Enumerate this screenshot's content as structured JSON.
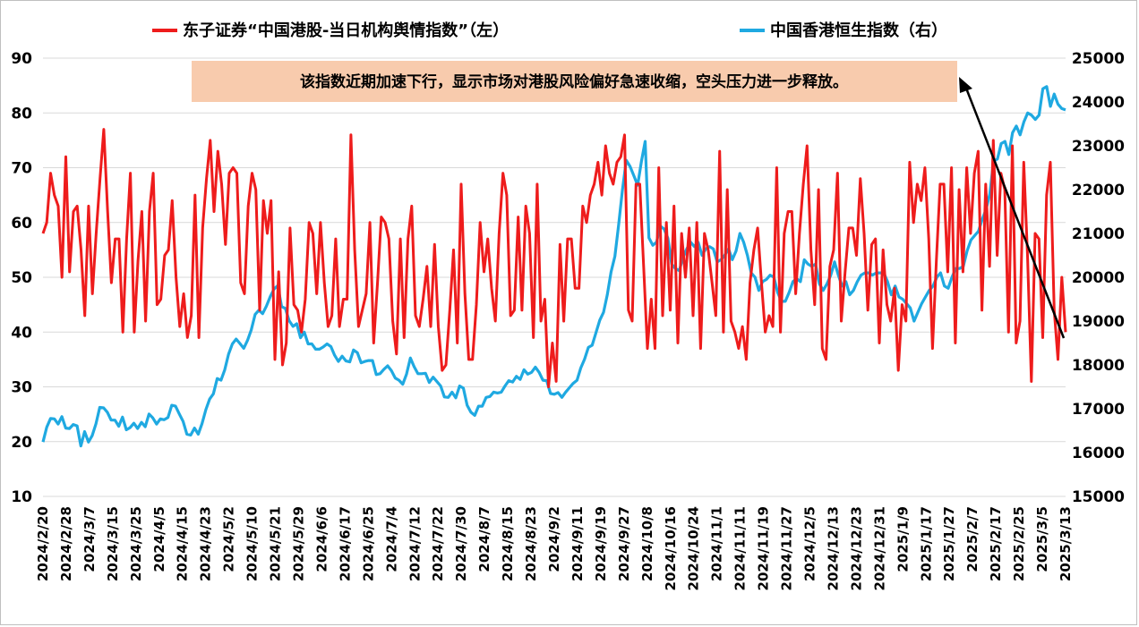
{
  "chart_data": {
    "type": "line",
    "title": "",
    "legend_placement": "top",
    "grid": true,
    "colors": {
      "left_series": "#ee1c1c",
      "right_series": "#1fa9e1",
      "annotation_bg": "#f8cbad",
      "grid": "#d9d9d9",
      "arrow": "#000000"
    },
    "y_left": {
      "ylim": [
        10,
        90
      ],
      "ticks": [
        "10",
        "20",
        "30",
        "40",
        "50",
        "60",
        "70",
        "80",
        "90"
      ]
    },
    "y_right": {
      "ylim": [
        15000,
        25000
      ],
      "ticks": [
        "15000",
        "16000",
        "17000",
        "18000",
        "19000",
        "20000",
        "21000",
        "22000",
        "23000",
        "24000",
        "25000"
      ]
    },
    "x_tick_labels": [
      "2024/2/20",
      "2024/2/28",
      "2024/3/7",
      "2024/3/15",
      "2024/3/25",
      "2024/4/5",
      "2024/4/15",
      "2024/4/23",
      "2024/5/2",
      "2024/5/10",
      "2024/5/21",
      "2024/5/29",
      "2024/6/6",
      "2024/6/17",
      "2024/6/25",
      "2024/7/4",
      "2024/7/12",
      "2024/7/22",
      "2024/7/30",
      "2024/8/7",
      "2024/8/15",
      "2024/8/23",
      "2024/9/2",
      "2024/9/11",
      "2024/9/19",
      "2024/9/27",
      "2024/10/8",
      "2024/10/16",
      "2024/10/24",
      "2024/11/1",
      "2024/11/11",
      "2024/11/19",
      "2024/11/27",
      "2024/12/5",
      "2024/12/13",
      "2024/12/23",
      "2024/12/31",
      "2025/1/9",
      "2025/1/17",
      "2025/1/27",
      "2025/2/7",
      "2025/2/17",
      "2025/2/25",
      "2025/3/5",
      "2025/3/13"
    ],
    "series": [
      {
        "name": "东子证券“中国港股-当日机构舆情指数”（左）",
        "axis": "left",
        "values": [
          58,
          60,
          69,
          65,
          63,
          50,
          72,
          51,
          62,
          63,
          55,
          43,
          63,
          47,
          58,
          68,
          77,
          62,
          49,
          57,
          57,
          40,
          57,
          69,
          40,
          53,
          62,
          42,
          62,
          69,
          45,
          46,
          54,
          55,
          64,
          50,
          41,
          47,
          39,
          43,
          65,
          39,
          59,
          68,
          75,
          62,
          73,
          67,
          56,
          69,
          70,
          69,
          49,
          47,
          63,
          69,
          66,
          44,
          64,
          58,
          64,
          35,
          51,
          34,
          38,
          59,
          45,
          44,
          40,
          46,
          60,
          58,
          47,
          60,
          49,
          41,
          43,
          57,
          41,
          46,
          46,
          76,
          55,
          41,
          44,
          47,
          60,
          38,
          49,
          61,
          60,
          57,
          42,
          36,
          57,
          39,
          57,
          63,
          43,
          41,
          46,
          52,
          41,
          56,
          41,
          33,
          34,
          44,
          55,
          38,
          67,
          47,
          35,
          35,
          45,
          60,
          51,
          57,
          48,
          42,
          58,
          69,
          65,
          43,
          44,
          61,
          44,
          63,
          58,
          39,
          67,
          42,
          46,
          30,
          38,
          31,
          56,
          42,
          57,
          57,
          48,
          48,
          63,
          60,
          65,
          67,
          71,
          65,
          74,
          69,
          67,
          71,
          72,
          76,
          44,
          42,
          67,
          67,
          52,
          37,
          46,
          37,
          70,
          43,
          60,
          44,
          63,
          38,
          58,
          50,
          59,
          43,
          60,
          37,
          58,
          55,
          49,
          43,
          73,
          40,
          66,
          42,
          40,
          37,
          41,
          35,
          49,
          55,
          59,
          49,
          40,
          43,
          41,
          70,
          40,
          58,
          62,
          62,
          47,
          58,
          67,
          74,
          55,
          45,
          66,
          37,
          35,
          52,
          55,
          69,
          42,
          51,
          59,
          59,
          54,
          68,
          58,
          44,
          56,
          57,
          38,
          55,
          45,
          42,
          48,
          33,
          45,
          42,
          71,
          60,
          67,
          64,
          70,
          57,
          37,
          53,
          67,
          67,
          51,
          70,
          38,
          66,
          51,
          70,
          58,
          69,
          73,
          44,
          67,
          52,
          75,
          54,
          69,
          66,
          40,
          74,
          38,
          42,
          71,
          54,
          31,
          58,
          57,
          39,
          65,
          71,
          44,
          35,
          50,
          40
        ]
      },
      {
        "name": "中国香港恒生指数（右）",
        "axis": "right",
        "values": [
          16240,
          16580,
          16780,
          16770,
          16650,
          16820,
          16560,
          16550,
          16640,
          16610,
          16150,
          16480,
          16240,
          16390,
          16660,
          17030,
          17020,
          16920,
          16740,
          16740,
          16600,
          16810,
          16520,
          16570,
          16670,
          16550,
          16690,
          16590,
          16880,
          16790,
          16650,
          16770,
          16750,
          16800,
          17080,
          17060,
          16880,
          16710,
          16420,
          16400,
          16560,
          16420,
          16660,
          16980,
          17220,
          17340,
          17690,
          17650,
          17890,
          18250,
          18480,
          18590,
          18490,
          18380,
          18560,
          18800,
          19150,
          19250,
          19170,
          19340,
          19560,
          19730,
          19810,
          19330,
          19290,
          19010,
          18880,
          18940,
          18620,
          18750,
          18480,
          18480,
          18360,
          18360,
          18410,
          18480,
          18420,
          18220,
          18080,
          18200,
          18090,
          18070,
          18340,
          18280,
          18050,
          18080,
          18100,
          18100,
          17780,
          17800,
          17900,
          17980,
          17870,
          17700,
          17650,
          17560,
          17790,
          18160,
          17960,
          17800,
          17800,
          17810,
          17600,
          17720,
          17620,
          17520,
          17270,
          17260,
          17380,
          17250,
          17520,
          17470,
          17080,
          16920,
          16850,
          17060,
          17060,
          17260,
          17280,
          17380,
          17360,
          17380,
          17520,
          17640,
          17610,
          17740,
          17670,
          17890,
          17790,
          17830,
          17950,
          17830,
          17650,
          17640,
          17350,
          17330,
          17370,
          17260,
          17380,
          17480,
          17580,
          17650,
          17930,
          18130,
          18400,
          18450,
          18730,
          19020,
          19200,
          19600,
          20120,
          20480,
          21200,
          21990,
          22670,
          22530,
          22320,
          22100,
          22640,
          23100,
          20900,
          20730,
          20800,
          21170,
          21100,
          20890,
          20300,
          20200,
          20150,
          20450,
          20650,
          20800,
          20700,
          20800,
          20500,
          20650,
          20700,
          20650,
          20350,
          20400,
          20500,
          20650,
          20400,
          20600,
          21000,
          20800,
          20500,
          20100,
          20000,
          19700,
          19900,
          19950,
          20050,
          20000,
          19650,
          19450,
          19450,
          19650,
          19900,
          19970,
          19900,
          20400,
          20300,
          20250,
          20300,
          19850,
          19700,
          19850,
          20050,
          20350,
          20050,
          19800,
          19900,
          19600,
          19700,
          19900,
          20050,
          20100,
          20100,
          20050,
          20100,
          20100,
          20100,
          19900,
          19600,
          19800,
          19550,
          19500,
          19400,
          19300,
          19000,
          19200,
          19400,
          19550,
          19700,
          19800,
          20000,
          20100,
          19800,
          19750,
          20000,
          20200,
          20200,
          20250,
          20600,
          20850,
          20950,
          21050,
          21320,
          21550,
          21900,
          22650,
          22700,
          23050,
          23100,
          22800,
          23300,
          23450,
          23250,
          23550,
          23750,
          23700,
          23600,
          23700,
          24300,
          24350,
          23900,
          24180,
          23950,
          23850,
          23820
        ]
      }
    ],
    "annotation": "该指数近期加速下行，显示市场对港股风险偏好急速收缩，空头压力进一步释放。"
  }
}
